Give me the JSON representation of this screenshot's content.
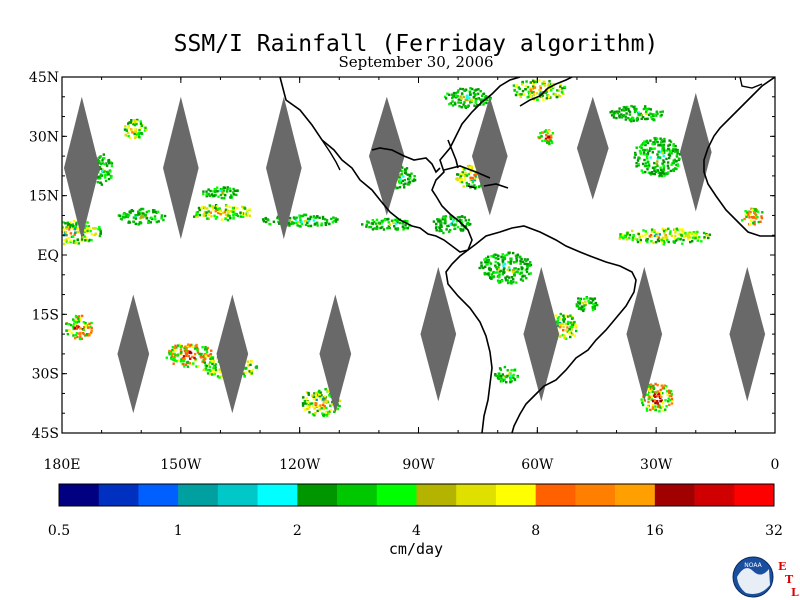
{
  "title": "SSM/I Rainfall (Ferriday algorithm)",
  "subtitle": "September 30, 2006",
  "map": {
    "lon_range": [
      -180,
      0
    ],
    "lat_range": [
      -45,
      45
    ],
    "lat_ticks": [
      {
        "lat": 45,
        "label": "45N"
      },
      {
        "lat": 30,
        "label": "30N"
      },
      {
        "lat": 15,
        "label": "15N"
      },
      {
        "lat": 0,
        "label": "EQ"
      },
      {
        "lat": -15,
        "label": "15S"
      },
      {
        "lat": -30,
        "label": "30S"
      },
      {
        "lat": -45,
        "label": "45S"
      }
    ],
    "lon_ticks": [
      {
        "lon": -180,
        "label": "180E"
      },
      {
        "lon": -150,
        "label": "150W"
      },
      {
        "lon": -120,
        "label": "120W"
      },
      {
        "lon": -90,
        "label": "90W"
      },
      {
        "lon": -60,
        "label": "60W"
      },
      {
        "lon": -30,
        "label": "30W"
      },
      {
        "lon": 0,
        "label": "0"
      }
    ],
    "gap_color": "#696969",
    "orbit_gaps": [
      {
        "lon": -175,
        "lat": 22,
        "half_width_deg": 4.5,
        "half_height_deg": 18
      },
      {
        "lon": -150,
        "lat": 22,
        "half_width_deg": 4.5,
        "half_height_deg": 18
      },
      {
        "lon": -124,
        "lat": 22,
        "half_width_deg": 4.5,
        "half_height_deg": 18
      },
      {
        "lon": -98,
        "lat": 25,
        "half_width_deg": 4.5,
        "half_height_deg": 15
      },
      {
        "lon": -72,
        "lat": 25,
        "half_width_deg": 4.5,
        "half_height_deg": 15
      },
      {
        "lon": -46,
        "lat": 27,
        "half_width_deg": 4,
        "half_height_deg": 13
      },
      {
        "lon": -20,
        "lat": 26,
        "half_width_deg": 4,
        "half_height_deg": 15
      },
      {
        "lon": -162,
        "lat": -25,
        "half_width_deg": 4,
        "half_height_deg": 15
      },
      {
        "lon": -137,
        "lat": -25,
        "half_width_deg": 4,
        "half_height_deg": 15
      },
      {
        "lon": -111,
        "lat": -25,
        "half_width_deg": 4,
        "half_height_deg": 15
      },
      {
        "lon": -85,
        "lat": -20,
        "half_width_deg": 4.5,
        "half_height_deg": 17
      },
      {
        "lon": -59,
        "lat": -20,
        "half_width_deg": 4.5,
        "half_height_deg": 17
      },
      {
        "lon": -33,
        "lat": -20,
        "half_width_deg": 4.5,
        "half_height_deg": 17
      },
      {
        "lon": -7,
        "lat": -20,
        "half_width_deg": 4.5,
        "half_height_deg": 17
      }
    ],
    "rain_areas": [
      {
        "lon": -178,
        "lat": 6,
        "w": 16,
        "h": 6,
        "seed": 1,
        "level": "mid"
      },
      {
        "lon": -160,
        "lat": 10,
        "w": 12,
        "h": 4,
        "seed": 2,
        "level": "low"
      },
      {
        "lon": -140,
        "lat": 11,
        "w": 16,
        "h": 4,
        "seed": 3,
        "level": "mid"
      },
      {
        "lon": -120,
        "lat": 9,
        "w": 20,
        "h": 3,
        "seed": 4,
        "level": "low"
      },
      {
        "lon": -98,
        "lat": 8,
        "w": 14,
        "h": 3,
        "seed": 5,
        "level": "low"
      },
      {
        "lon": -162,
        "lat": 32,
        "w": 6,
        "h": 5,
        "seed": 6,
        "level": "mid"
      },
      {
        "lon": -170,
        "lat": 22,
        "w": 5,
        "h": 8,
        "seed": 7,
        "level": "low"
      },
      {
        "lon": -140,
        "lat": 16,
        "w": 10,
        "h": 3,
        "seed": 8,
        "level": "low"
      },
      {
        "lon": -176,
        "lat": -18,
        "w": 7,
        "h": 6,
        "seed": 9,
        "level": "high"
      },
      {
        "lon": -148,
        "lat": -25,
        "w": 12,
        "h": 6,
        "seed": 10,
        "level": "high"
      },
      {
        "lon": -138,
        "lat": -28,
        "w": 14,
        "h": 6,
        "seed": 11,
        "level": "mid"
      },
      {
        "lon": -115,
        "lat": -37,
        "w": 10,
        "h": 7,
        "seed": 12,
        "level": "mid"
      },
      {
        "lon": -78,
        "lat": 40,
        "w": 12,
        "h": 5,
        "seed": 13,
        "level": "low"
      },
      {
        "lon": -60,
        "lat": 42,
        "w": 14,
        "h": 5,
        "seed": 14,
        "level": "mid"
      },
      {
        "lon": -35,
        "lat": 36,
        "w": 14,
        "h": 4,
        "seed": 15,
        "level": "low"
      },
      {
        "lon": -30,
        "lat": 25,
        "w": 12,
        "h": 10,
        "seed": 16,
        "level": "low"
      },
      {
        "lon": -58,
        "lat": 30,
        "w": 4,
        "h": 4,
        "seed": 17,
        "level": "high"
      },
      {
        "lon": -76,
        "lat": 20,
        "w": 10,
        "h": 6,
        "seed": 18,
        "level": "mid"
      },
      {
        "lon": -95,
        "lat": 20,
        "w": 8,
        "h": 6,
        "seed": 19,
        "level": "low"
      },
      {
        "lon": -82,
        "lat": 8,
        "w": 10,
        "h": 5,
        "seed": 20,
        "level": "low"
      },
      {
        "lon": -28,
        "lat": 5,
        "w": 24,
        "h": 4,
        "seed": 21,
        "level": "mid"
      },
      {
        "lon": -6,
        "lat": 10,
        "w": 6,
        "h": 4,
        "seed": 22,
        "level": "high"
      },
      {
        "lon": -68,
        "lat": -3,
        "w": 14,
        "h": 8,
        "seed": 23,
        "level": "low"
      },
      {
        "lon": -54,
        "lat": -18,
        "w": 8,
        "h": 7,
        "seed": 24,
        "level": "mid"
      },
      {
        "lon": -30,
        "lat": -36,
        "w": 8,
        "h": 8,
        "seed": 25,
        "level": "high"
      },
      {
        "lon": -68,
        "lat": -30,
        "w": 6,
        "h": 4,
        "seed": 26,
        "level": "low"
      },
      {
        "lon": -48,
        "lat": -12,
        "w": 6,
        "h": 4,
        "seed": 27,
        "level": "low"
      }
    ]
  },
  "colorbar": {
    "colors": [
      "#000080",
      "#0030c0",
      "#0060ff",
      "#00a0a0",
      "#00c8c8",
      "#00ffff",
      "#009600",
      "#00c800",
      "#00ff00",
      "#b4b400",
      "#e0e000",
      "#ffff00",
      "#ff6000",
      "#ff8000",
      "#ffa000",
      "#a00000",
      "#d00000",
      "#ff0000"
    ],
    "labels": [
      "0.5",
      "1",
      "2",
      "4",
      "8",
      "16",
      "32"
    ],
    "unit": "cm/day"
  },
  "logo": {
    "text": "NOAA",
    "side_letters": [
      "E",
      "T",
      "L"
    ]
  }
}
